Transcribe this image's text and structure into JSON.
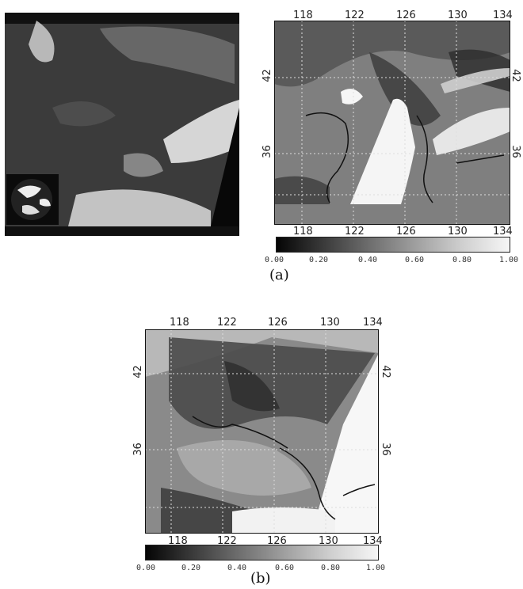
{
  "panel_a": {
    "top_lon_ticks": [
      "118",
      "122",
      "126",
      "130",
      "134"
    ],
    "bottom_lon_ticks": [
      "118",
      "122",
      "126",
      "130",
      "134"
    ],
    "left_lat_ticks": [
      "42",
      "36"
    ],
    "right_lat_ticks": [
      "42",
      "36"
    ],
    "colorbar_labels": [
      "0.00",
      "0.20",
      "0.40",
      "0.60",
      "0.80",
      "1.00"
    ],
    "caption": "(a)"
  },
  "panel_b": {
    "top_lon_ticks": [
      "118",
      "122",
      "126",
      "130",
      "134"
    ],
    "bottom_lon_ticks": [
      "118",
      "122",
      "126",
      "130",
      "134"
    ],
    "left_lat_ticks": [
      "42",
      "36"
    ],
    "right_lat_ticks": [
      "42",
      "36"
    ],
    "colorbar_labels": [
      "0.00",
      "0.20",
      "0.40",
      "0.60",
      "0.80",
      "1.00"
    ],
    "caption": "(b)"
  }
}
